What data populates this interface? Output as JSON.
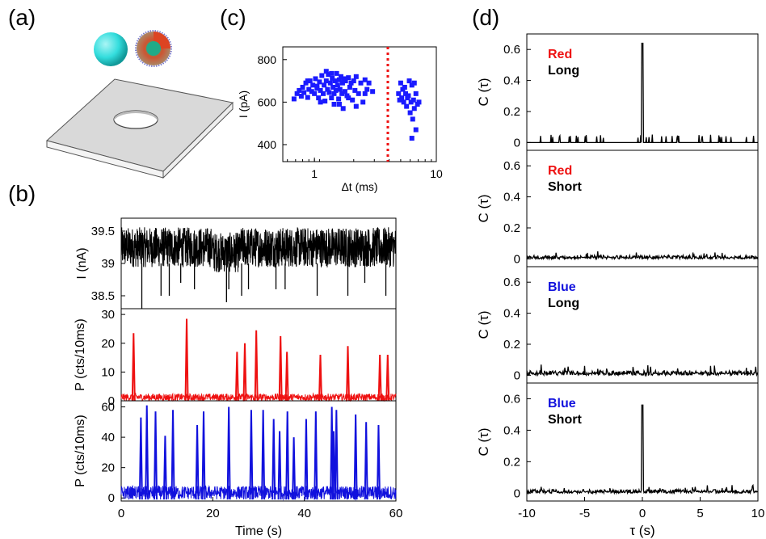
{
  "panel_labels": {
    "a": "(a)",
    "b": "(b)",
    "c": "(c)",
    "d": "(d)"
  },
  "colors": {
    "red": "#ee1111",
    "blue": "#1111dd",
    "black": "#000000",
    "sphere": "#33dddd",
    "dash": "#ee1111",
    "scatter": "#1a1aff"
  },
  "chart_data": [
    {
      "id": "c",
      "type": "scatter",
      "xlabel": "Δt (ms)",
      "ylabel": "I (pA)",
      "xscale": "log",
      "xlim": [
        0.55,
        10
      ],
      "ylim": [
        320,
        860
      ],
      "xticks": [
        1,
        10
      ],
      "xticklabels": [
        "1",
        "10"
      ],
      "yticks": [
        400,
        600,
        800
      ],
      "yticklabels": [
        "400",
        "600",
        "800"
      ],
      "vline": 4.0,
      "points": [
        [
          0.68,
          615
        ],
        [
          0.72,
          640
        ],
        [
          0.75,
          655
        ],
        [
          0.78,
          628
        ],
        [
          0.8,
          670
        ],
        [
          0.82,
          645
        ],
        [
          0.85,
          690
        ],
        [
          0.88,
          622
        ],
        [
          0.9,
          660
        ],
        [
          0.92,
          700
        ],
        [
          0.95,
          650
        ],
        [
          0.97,
          680
        ],
        [
          1.0,
          640
        ],
        [
          1.02,
          710
        ],
        [
          1.05,
          665
        ],
        [
          1.08,
          620
        ],
        [
          1.1,
          695
        ],
        [
          1.12,
          655
        ],
        [
          1.15,
          725
        ],
        [
          1.18,
          640
        ],
        [
          1.2,
          680
        ],
        [
          1.22,
          605
        ],
        [
          1.25,
          700
        ],
        [
          1.28,
          660
        ],
        [
          1.3,
          730
        ],
        [
          1.32,
          645
        ],
        [
          1.35,
          690
        ],
        [
          1.38,
          620
        ],
        [
          1.4,
          712
        ],
        [
          1.42,
          670
        ],
        [
          1.45,
          590
        ],
        [
          1.48,
          700
        ],
        [
          1.5,
          655
        ],
        [
          1.52,
          735
        ],
        [
          1.55,
          680
        ],
        [
          1.58,
          615
        ],
        [
          1.6,
          705
        ],
        [
          1.62,
          660
        ],
        [
          1.65,
          720
        ],
        [
          1.68,
          640
        ],
        [
          1.7,
          690
        ],
        [
          1.72,
          570
        ],
        [
          1.75,
          710
        ],
        [
          1.78,
          650
        ],
        [
          1.8,
          700
        ],
        [
          1.85,
          630
        ],
        [
          1.9,
          715
        ],
        [
          1.95,
          670
        ],
        [
          2.0,
          690
        ],
        [
          2.05,
          610
        ],
        [
          2.1,
          700
        ],
        [
          2.15,
          655
        ],
        [
          2.2,
          720
        ],
        [
          2.3,
          640
        ],
        [
          2.4,
          690
        ],
        [
          2.5,
          600
        ],
        [
          2.6,
          705
        ],
        [
          2.7,
          660
        ],
        [
          2.8,
          690
        ],
        [
          3.0,
          650
        ],
        [
          1.25,
          745
        ],
        [
          1.6,
          590
        ],
        [
          2.2,
          580
        ],
        [
          0.88,
          700
        ],
        [
          1.12,
          600
        ],
        [
          1.38,
          735
        ],
        [
          1.9,
          620
        ],
        [
          2.6,
          640
        ],
        [
          1.05,
          675
        ],
        [
          1.45,
          640
        ],
        [
          4.9,
          640
        ],
        [
          5.0,
          610
        ],
        [
          5.1,
          690
        ],
        [
          5.2,
          620
        ],
        [
          5.4,
          600
        ],
        [
          5.5,
          670
        ],
        [
          5.6,
          640
        ],
        [
          5.7,
          580
        ],
        [
          5.8,
          620
        ],
        [
          6.0,
          700
        ],
        [
          6.1,
          550
        ],
        [
          6.2,
          600
        ],
        [
          6.3,
          680
        ],
        [
          6.4,
          520
        ],
        [
          6.5,
          610
        ],
        [
          6.6,
          570
        ],
        [
          6.8,
          640
        ],
        [
          7.0,
          590
        ],
        [
          7.2,
          600
        ],
        [
          6.3,
          430
        ],
        [
          6.8,
          470
        ],
        [
          5.3,
          660
        ],
        [
          5.9,
          630
        ],
        [
          6.6,
          690
        ]
      ]
    },
    {
      "id": "b1",
      "type": "line",
      "xlabel": "",
      "ylabel": "I (nA)",
      "xlim": [
        0,
        60
      ],
      "ylim": [
        38.3,
        39.7
      ],
      "yticks": [
        38.5,
        39,
        39.5
      ],
      "yticklabels": [
        "38.5",
        "39",
        "39.5"
      ],
      "series": [
        {
          "baseline": 39.2,
          "noise": "±0.35 nA",
          "dips": [
            [
              4.5,
              38.3
            ],
            [
              8.7,
              38.5
            ],
            [
              10.5,
              38.5
            ],
            [
              13.0,
              38.7
            ],
            [
              16.0,
              38.6
            ],
            [
              23.0,
              38.4
            ],
            [
              23.5,
              38.6
            ],
            [
              26.3,
              38.5
            ],
            [
              27.8,
              38.6
            ],
            [
              33.8,
              38.6
            ],
            [
              35.8,
              38.6
            ],
            [
              42.8,
              38.5
            ],
            [
              49.5,
              38.5
            ],
            [
              53.2,
              38.7
            ],
            [
              57.8,
              38.5
            ]
          ]
        }
      ]
    },
    {
      "id": "b2",
      "type": "line",
      "xlabel": "",
      "ylabel": "P (cts/10ms)",
      "xlim": [
        0,
        60
      ],
      "ylim": [
        0,
        32
      ],
      "yticks": [
        0,
        10,
        20,
        30
      ],
      "yticklabels": [
        "0",
        "10",
        "20",
        "30"
      ],
      "series": [
        {
          "color": "red",
          "peaks": [
            [
              2.7,
              23.5
            ],
            [
              14.3,
              28.5
            ],
            [
              25.3,
              17
            ],
            [
              27.0,
              20
            ],
            [
              29.5,
              24.5
            ],
            [
              34.8,
              22.5
            ],
            [
              36.2,
              17
            ],
            [
              43.5,
              16
            ],
            [
              49.5,
              19
            ],
            [
              56.5,
              16
            ],
            [
              58.2,
              16
            ]
          ]
        }
      ]
    },
    {
      "id": "b3",
      "type": "line",
      "xlabel": "Time (s)",
      "ylabel": "P (cts/10ms)",
      "xlim": [
        0,
        60
      ],
      "ylim": [
        -2,
        64
      ],
      "xticks": [
        0,
        20,
        40,
        60
      ],
      "xticklabels": [
        "0",
        "20",
        "40",
        "60"
      ],
      "yticks": [
        0,
        20,
        40,
        60
      ],
      "yticklabels": [
        "0",
        "20",
        "40",
        "60"
      ],
      "series": [
        {
          "color": "blue",
          "peaks": [
            [
              4.3,
              53
            ],
            [
              5.6,
              61
            ],
            [
              7.5,
              57
            ],
            [
              9.6,
              41
            ],
            [
              11.3,
              58
            ],
            [
              16.6,
              48
            ],
            [
              18.0,
              57
            ],
            [
              23.5,
              60
            ],
            [
              28.4,
              58
            ],
            [
              31.0,
              58
            ],
            [
              33.3,
              52
            ],
            [
              34.6,
              44
            ],
            [
              36.3,
              57
            ],
            [
              37.7,
              40
            ],
            [
              40.4,
              52
            ],
            [
              42.5,
              57
            ],
            [
              46.0,
              60
            ],
            [
              46.4,
              44
            ],
            [
              47.0,
              58
            ],
            [
              51.2,
              55
            ],
            [
              53.5,
              50
            ],
            [
              56.2,
              48
            ]
          ]
        }
      ]
    },
    {
      "id": "d1",
      "type": "line",
      "xlabel": "",
      "ylabel": "C (τ)",
      "xlim": [
        -10,
        10
      ],
      "ylim": [
        -0.05,
        0.7
      ],
      "yticks": [
        0,
        0.2,
        0.4,
        0.6
      ],
      "yticklabels": [
        "0",
        "0.2",
        "0.4",
        "0.6"
      ],
      "legend": [
        "Red",
        "Long"
      ],
      "series": [
        {
          "peak": [
            0,
            0.64
          ],
          "baseline_spikes": 0.04
        }
      ]
    },
    {
      "id": "d2",
      "type": "line",
      "xlabel": "",
      "ylabel": "C (τ)",
      "xlim": [
        -10,
        10
      ],
      "ylim": [
        -0.05,
        0.7
      ],
      "yticks": [
        0,
        0.2,
        0.4,
        0.6
      ],
      "yticklabels": [
        "0",
        "0.2",
        "0.4",
        "0.6"
      ],
      "legend": [
        "Red",
        "Short"
      ],
      "series": [
        {
          "noise": 0.03
        }
      ]
    },
    {
      "id": "d3",
      "type": "line",
      "xlabel": "",
      "ylabel": "C (τ)",
      "xlim": [
        -10,
        10
      ],
      "ylim": [
        -0.05,
        0.7
      ],
      "yticks": [
        0,
        0.2,
        0.4,
        0.6
      ],
      "yticklabels": [
        "0",
        "0.2",
        "0.4",
        "0.6"
      ],
      "legend": [
        "Blue",
        "Long"
      ],
      "series": [
        {
          "noise": 0.04
        }
      ]
    },
    {
      "id": "d4",
      "type": "line",
      "xlabel": "τ (s)",
      "ylabel": "C (τ)",
      "xlim": [
        -10,
        10
      ],
      "ylim": [
        -0.05,
        0.7
      ],
      "xticks": [
        -10,
        -5,
        0,
        5,
        10
      ],
      "xticklabels": [
        "-10",
        "-5",
        "0",
        "5",
        "10"
      ],
      "yticks": [
        0,
        0.2,
        0.4,
        0.6
      ],
      "yticklabels": [
        "0",
        "0.2",
        "0.4",
        "0.6"
      ],
      "legend": [
        "Blue",
        "Short"
      ],
      "series": [
        {
          "peak": [
            0,
            0.56
          ],
          "noise": 0.03
        }
      ]
    }
  ]
}
